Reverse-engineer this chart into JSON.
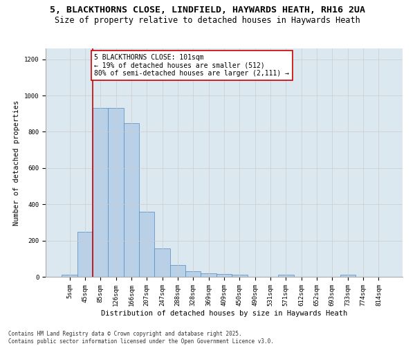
{
  "title_line1": "5, BLACKTHORNS CLOSE, LINDFIELD, HAYWARDS HEATH, RH16 2UA",
  "title_line2": "Size of property relative to detached houses in Haywards Heath",
  "xlabel": "Distribution of detached houses by size in Haywards Heath",
  "ylabel": "Number of detached properties",
  "bin_labels": [
    "5sqm",
    "45sqm",
    "85sqm",
    "126sqm",
    "166sqm",
    "207sqm",
    "247sqm",
    "288sqm",
    "328sqm",
    "369sqm",
    "409sqm",
    "450sqm",
    "490sqm",
    "531sqm",
    "571sqm",
    "612sqm",
    "652sqm",
    "693sqm",
    "733sqm",
    "774sqm",
    "814sqm"
  ],
  "bar_values": [
    10,
    248,
    930,
    930,
    848,
    358,
    158,
    65,
    30,
    18,
    14,
    10,
    0,
    0,
    10,
    0,
    0,
    0,
    10,
    0,
    0
  ],
  "bar_color": "#b8d0e8",
  "bar_edge_color": "#5588bb",
  "vline_color": "#cc0000",
  "annotation_text": "5 BLACKTHORNS CLOSE: 101sqm\n← 19% of detached houses are smaller (512)\n80% of semi-detached houses are larger (2,111) →",
  "annotation_box_color": "#ffffff",
  "annotation_box_edge_color": "#cc0000",
  "ylim": [
    0,
    1260
  ],
  "yticks": [
    0,
    200,
    400,
    600,
    800,
    1000,
    1200
  ],
  "grid_color": "#cccccc",
  "bg_color": "#dce8f0",
  "footer_text": "Contains HM Land Registry data © Crown copyright and database right 2025.\nContains public sector information licensed under the Open Government Licence v3.0.",
  "title_fontsize": 9.5,
  "subtitle_fontsize": 8.5,
  "axis_label_fontsize": 7.5,
  "tick_fontsize": 6.5,
  "annotation_fontsize": 7.0,
  "footer_fontsize": 5.5
}
